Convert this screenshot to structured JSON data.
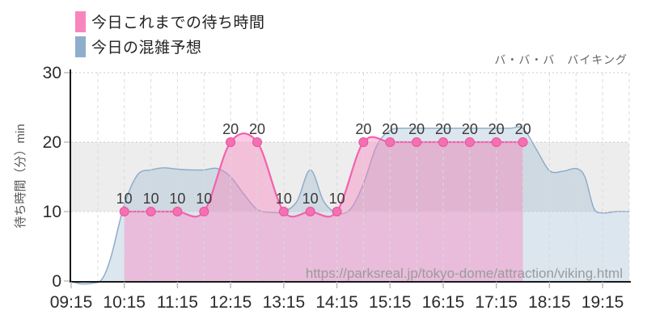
{
  "header": {
    "attraction_name": "バ・バ・バ　バイキング"
  },
  "legend": {
    "items": [
      {
        "label": "今日これまでの待ち時間",
        "color": "#F985BE"
      },
      {
        "label": "今日の混雑予想",
        "color": "#8FAECD"
      }
    ]
  },
  "watermark_url": "https://parksreal.jp/tokyo-dome/attraction/viking.html",
  "chart_data": {
    "type": "line",
    "title": "",
    "xlabel": "",
    "ylabel": "待ち時間（分）min",
    "ylim": [
      0,
      30
    ],
    "yticks": [
      0,
      10,
      20,
      30
    ],
    "xtick_labels": [
      "09:15",
      "10:15",
      "11:15",
      "12:15",
      "13:15",
      "14:15",
      "15:15",
      "16:15",
      "17:15",
      "18:15",
      "19:15"
    ],
    "x_range": [
      "09:15",
      "19:45"
    ],
    "grid": {
      "h_values": [
        10,
        20,
        30
      ],
      "v_interval_min": 30,
      "band": {
        "from": 10,
        "to": 20,
        "color": "#EDEDED"
      }
    },
    "series": [
      {
        "name": "今日これまでの待ち時間",
        "kind": "area-line-markers",
        "line_color": "#F163AC",
        "fill_color": "rgba(249,133,190,0.43)",
        "marker_color": "#F470B2",
        "marker_stroke": "#E8519F",
        "show_labels": true,
        "points": [
          [
            "10:15",
            10
          ],
          [
            "10:45",
            10
          ],
          [
            "11:15",
            10
          ],
          [
            "11:45",
            10
          ],
          [
            "12:15",
            20
          ],
          [
            "12:45",
            20
          ],
          [
            "13:15",
            10
          ],
          [
            "13:45",
            10
          ],
          [
            "14:15",
            10
          ],
          [
            "14:45",
            20
          ],
          [
            "15:15",
            20
          ],
          [
            "15:45",
            20
          ],
          [
            "16:15",
            20
          ],
          [
            "16:45",
            20
          ],
          [
            "17:15",
            20
          ],
          [
            "17:45",
            20
          ]
        ]
      },
      {
        "name": "今日の混雑予想",
        "kind": "area",
        "line_color": "#8AA9C7",
        "fill_color": "rgba(140,172,203,0.30)",
        "show_labels": false,
        "points": [
          [
            "09:15",
            0
          ],
          [
            "09:25",
            -0.4
          ],
          [
            "09:40",
            -0.3
          ],
          [
            "09:50",
            0.3
          ],
          [
            "10:00",
            3.5
          ],
          [
            "10:15",
            11
          ],
          [
            "10:30",
            15.3
          ],
          [
            "10:45",
            16
          ],
          [
            "11:00",
            16.3
          ],
          [
            "11:15",
            16.1
          ],
          [
            "11:30",
            16
          ],
          [
            "11:45",
            16
          ],
          [
            "12:00",
            16.2
          ],
          [
            "12:15",
            15
          ],
          [
            "12:30",
            12.5
          ],
          [
            "12:45",
            10.3
          ],
          [
            "13:00",
            9.9
          ],
          [
            "13:15",
            10
          ],
          [
            "13:30",
            11.5
          ],
          [
            "13:45",
            16
          ],
          [
            "14:00",
            11.5
          ],
          [
            "14:15",
            9.8
          ],
          [
            "14:30",
            10.3
          ],
          [
            "14:45",
            14
          ],
          [
            "15:00",
            19.5
          ],
          [
            "15:15",
            21.7
          ],
          [
            "15:30",
            22
          ],
          [
            "16:00",
            22
          ],
          [
            "16:30",
            22
          ],
          [
            "17:00",
            22
          ],
          [
            "17:30",
            22
          ],
          [
            "17:45",
            22
          ],
          [
            "18:00",
            19
          ],
          [
            "18:15",
            15.9
          ],
          [
            "18:30",
            15.8
          ],
          [
            "18:45",
            16.2
          ],
          [
            "18:55",
            15
          ],
          [
            "19:05",
            10.5
          ],
          [
            "19:15",
            9.8
          ],
          [
            "19:30",
            10
          ],
          [
            "19:45",
            10
          ]
        ]
      }
    ]
  }
}
